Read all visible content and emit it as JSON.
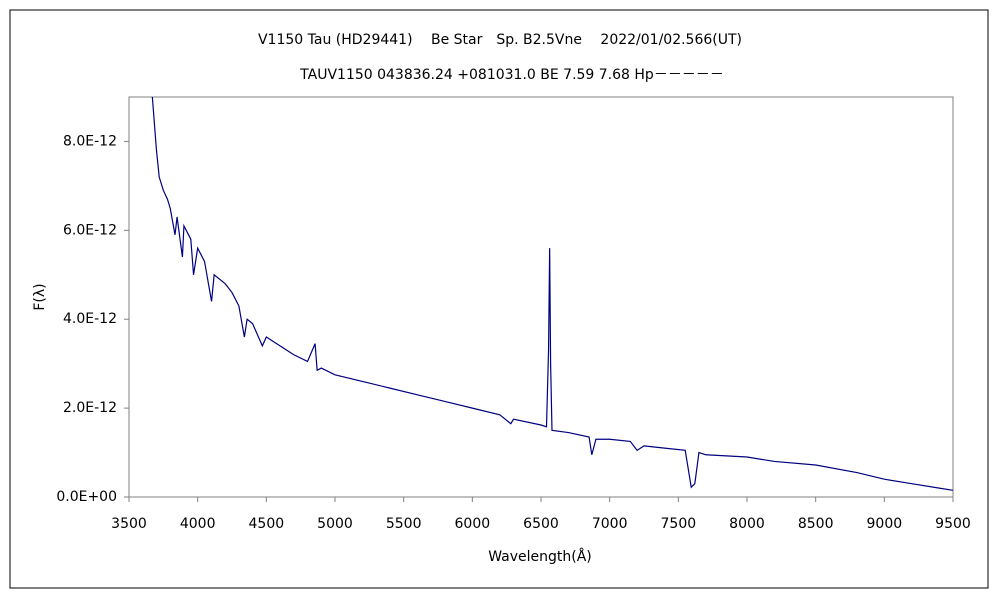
{
  "chart_data": {
    "type": "line",
    "title": "V1150 Tau (HD29441)　 Be Star　Sp. B2.5Vne　 2022/01/02.566(UT)",
    "subtitle": "TAUV1150 043836.24 +081031.0 BE 7.59 7.68 Hp－－－－－",
    "x_label": "Wavelength(Å)",
    "y_label": "F(λ)",
    "xlim": [
      3500,
      9500
    ],
    "xticks": [
      3500,
      4000,
      4500,
      5000,
      5500,
      6000,
      6500,
      7000,
      7500,
      8000,
      8500,
      9000,
      9500
    ],
    "ylim": [
      0,
      9e-12
    ],
    "yticks": [
      {
        "value": 0,
        "label": "0.0E+00"
      },
      {
        "value": 2e-12,
        "label": "2.0E-12"
      },
      {
        "value": 4e-12,
        "label": "4.0E-12"
      },
      {
        "value": 6e-12,
        "label": "6.0E-12"
      },
      {
        "value": 8e-12,
        "label": "8.0E-12"
      }
    ],
    "grid": false,
    "series": [
      {
        "name": null,
        "color": "#000080",
        "x": [
          3670,
          3700,
          3720,
          3750,
          3780,
          3800,
          3835,
          3850,
          3889,
          3900,
          3950,
          3970,
          4000,
          4050,
          4101,
          4120,
          4200,
          4250,
          4300,
          4340,
          4360,
          4400,
          4471,
          4500,
          4600,
          4700,
          4800,
          4855,
          4870,
          4900,
          5000,
          5200,
          5400,
          5600,
          5800,
          6000,
          6200,
          6280,
          6300,
          6500,
          6540,
          6555,
          6563,
          6570,
          6580,
          6700,
          6850,
          6870,
          6900,
          7000,
          7150,
          7200,
          7250,
          7400,
          7550,
          7594,
          7620,
          7650,
          7700,
          8000,
          8200,
          8500,
          8800,
          9000,
          9200,
          9400,
          9500
        ],
        "values": [
          9e-12,
          7.8e-12,
          7.2e-12,
          6.9e-12,
          6.7e-12,
          6.5e-12,
          5.9e-12,
          6.3e-12,
          5.4e-12,
          6.1e-12,
          5.8e-12,
          5e-12,
          5.6e-12,
          5.3e-12,
          4.4e-12,
          5e-12,
          4.8e-12,
          4.6e-12,
          4.3e-12,
          3.6e-12,
          4e-12,
          3.9e-12,
          3.4e-12,
          3.6e-12,
          3.4e-12,
          3.2e-12,
          3.05e-12,
          3.45e-12,
          2.85e-12,
          2.9e-12,
          2.75e-12,
          2.6e-12,
          2.45e-12,
          2.3e-12,
          2.15e-12,
          2e-12,
          1.85e-12,
          1.65e-12,
          1.75e-12,
          1.62e-12,
          1.58e-12,
          3.3e-12,
          5.6e-12,
          3e-12,
          1.5e-12,
          1.45e-12,
          1.35e-12,
          9.5e-13,
          1.3e-12,
          1.3e-12,
          1.25e-12,
          1.05e-12,
          1.15e-12,
          1.1e-12,
          1.05e-12,
          2.2e-13,
          3e-13,
          1e-12,
          9.5e-13,
          9e-13,
          8e-13,
          7.2e-13,
          5.5e-13,
          4e-13,
          3e-13,
          2e-13,
          1.5e-13
        ]
      }
    ]
  }
}
